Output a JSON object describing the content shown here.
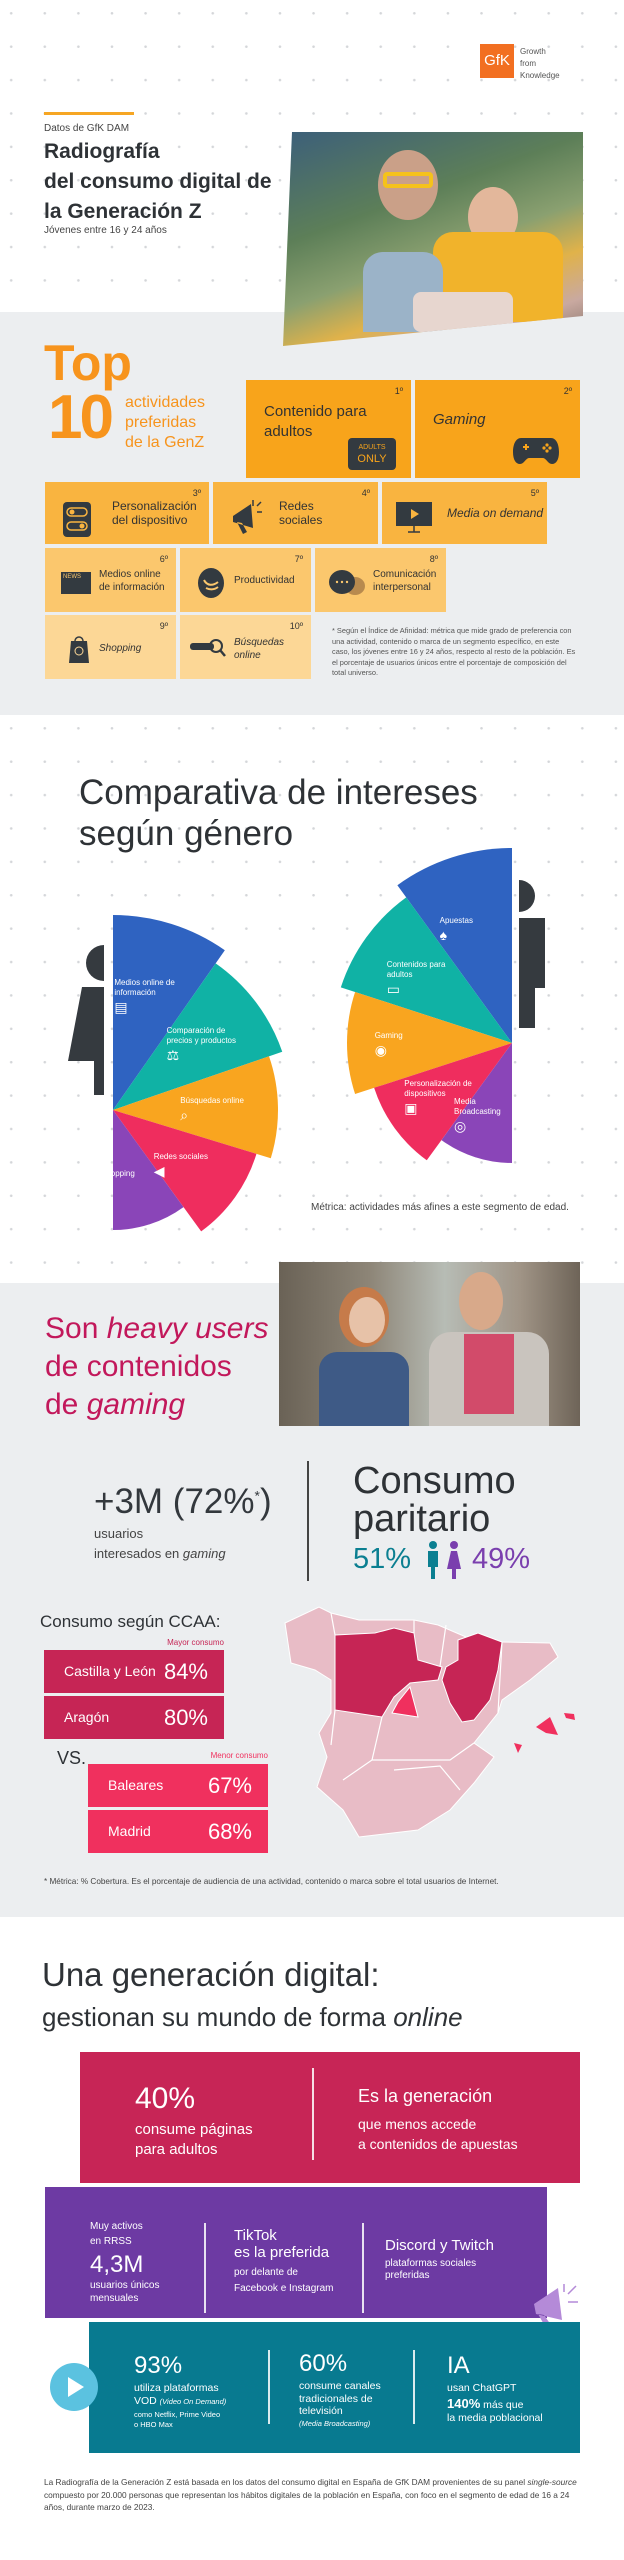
{
  "header": {
    "logo": {
      "brand": "GfK",
      "tagline": [
        "Growth",
        "from",
        "Knowledge"
      ],
      "color": "#f26f21"
    },
    "kicker": "Datos de GfK DAM",
    "title_lines": [
      "Radiografía",
      "del consumo digital de",
      "la Generación Z"
    ],
    "subtitle": "Jóvenes entre 16 y 24 años"
  },
  "top10": {
    "top": "Top",
    "ten": "10",
    "caption_lines": [
      "actividades",
      "preferidas",
      "de la GenZ"
    ],
    "tiles": [
      {
        "rank": "1º",
        "label": "Contenido para adultos",
        "icon": "adults-only-sign-icon",
        "icon_text": [
          "ADULTS",
          "ONLY"
        ]
      },
      {
        "rank": "2º",
        "label": "Gaming",
        "icon": "gamepad-icon"
      },
      {
        "rank": "3º",
        "label": "Personalización del dispositivo",
        "icon": "toggle-switches-icon"
      },
      {
        "rank": "4º",
        "label": "Redes sociales",
        "icon": "megaphone-icon"
      },
      {
        "rank": "5º",
        "label": "Media on demand",
        "icon": "monitor-play-icon"
      },
      {
        "rank": "6º",
        "label": "Medios online de información",
        "icon": "newspaper-icon",
        "icon_text": [
          "NEWS"
        ]
      },
      {
        "rank": "7º",
        "label": "Productividad",
        "icon": "productivity-icon"
      },
      {
        "rank": "8º",
        "label": "Comunicación interpersonal",
        "icon": "chat-bubbles-icon"
      },
      {
        "rank": "9º",
        "label": "Shopping",
        "icon": "shopping-bag-icon"
      },
      {
        "rank": "10º",
        "label": "Búsquedas online",
        "icon": "search-bar-icon"
      }
    ],
    "footnote": "* Según el Índice de Afinidad: métrica que mide grado de preferencia con una actividad, contenido o marca de un segmento específico, en este caso, los jóvenes entre 16 y 24 años, respecto al resto de la población. Es el porcentaje de usuarios únicos entre el porcentaje de composición del total universo.",
    "colors": [
      "#f8a41b",
      "#f9b440",
      "#fbc76d",
      "#fcd796"
    ]
  },
  "gender": {
    "title_lines": [
      "Comparativa de intereses",
      "según género"
    ],
    "female": [
      {
        "label": "Medios online de información",
        "icon": "newspaper-icon",
        "color": "#2f63c1"
      },
      {
        "label": "Comparación de precios y productos",
        "icon": "scale-icon",
        "color": "#10b2a5"
      },
      {
        "label": "Búsquedas online",
        "icon": "search-icon",
        "color": "#f9a51f"
      },
      {
        "label": "Redes sociales",
        "icon": "megaphone-icon",
        "color": "#ef2d5e"
      },
      {
        "label": "Shopping",
        "icon": "shopping-bag-icon",
        "color": "#8a45b8"
      }
    ],
    "male": [
      {
        "label": "Apuestas",
        "icon": "spade-icon",
        "color": "#2f63c1"
      },
      {
        "label": "Contenidos para adultos",
        "icon": "adults-only-sign-icon",
        "color": "#10b2a5"
      },
      {
        "label": "Gaming",
        "icon": "gamepad-icon",
        "color": "#f9a51f"
      },
      {
        "label": "Personalización de dispositivos",
        "icon": "toggle-switches-icon",
        "color": "#ef2d5e"
      },
      {
        "label": "Media Broadcasting",
        "icon": "broadcast-antenna-icon",
        "color": "#8a45b8"
      }
    ],
    "metric_note": "Métrica: actividades más afines a este segmento de edad."
  },
  "gaming": {
    "heading": {
      "l1a": "Son ",
      "l1b": "heavy users",
      "l2": "de contenidos",
      "l3a": "de ",
      "l3b": "gaming"
    },
    "users_stat": "+3M (72%",
    "users_star": "*",
    "users_close": ")",
    "users_desc_1": "usuarios",
    "users_desc_2a": "interesados en ",
    "users_desc_2b": "gaming",
    "parity_title": [
      "Consumo",
      "paritario"
    ],
    "male_pct": "51%",
    "female_pct": "49%",
    "male_color": "#0b7f91",
    "female_color": "#7a3fae",
    "ccaa_title": "Consumo según CCAA:",
    "higher_label": "Mayor consumo",
    "lower_label": "Menor consumo",
    "vs": "VS.",
    "higher": [
      {
        "region": "Castilla y León",
        "value": "84%"
      },
      {
        "region": "Aragón",
        "value": "80%"
      }
    ],
    "lower": [
      {
        "region": "Baleares",
        "value": "67%"
      },
      {
        "region": "Madrid",
        "value": "68%"
      }
    ],
    "footnote": "* Métrica: % Cobertura. Es el porcentaje de audiencia de una actividad, contenido o marca sobre el total usuarios de Internet.",
    "colors": {
      "higher": "#c62555",
      "lower": "#f0305e",
      "map_base": "#e8bcc6"
    }
  },
  "digital": {
    "title": "Una generación digital:",
    "subtitle_a": "gestionan su mundo de forma ",
    "subtitle_b": "online",
    "pink": {
      "pct": "40%",
      "pct_desc": [
        "consume páginas",
        "para adultos"
      ],
      "right_title": "Es la generación",
      "right_desc": [
        "que menos accede",
        "a contenidos de apuestas"
      ],
      "color": "#c72556"
    },
    "purple": {
      "c1_top": [
        "Muy activos",
        "en RRSS"
      ],
      "c1_value": "4,3M",
      "c1_desc": [
        "usuarios únicos",
        "mensuales"
      ],
      "c2_title": [
        "TikTok",
        "es la preferida"
      ],
      "c2_desc": [
        "por delante de",
        "Facebook e Instagram"
      ],
      "c3_title": "Discord y Twitch",
      "c3_desc": [
        "plataformas sociales",
        "preferidas"
      ],
      "color": "#6d3aa3"
    },
    "teal": {
      "c1_value": "93%",
      "c1_desc": "utiliza plataformas",
      "c1_vod": "VOD ",
      "c1_vod_it": "(Video On Demand)",
      "c1_small": [
        "como Netflix, Prime Video",
        "o HBO Max"
      ],
      "c2_value": "60%",
      "c2_desc": [
        "consume canales",
        "tradicionales de",
        "televisión"
      ],
      "c2_small": "(Media Broadcasting)",
      "c3_value": "IA",
      "c3_desc": "usan ChatGPT",
      "c3_pct": "140%",
      "c3_more": " más que",
      "c3_tail": "la media poblacional",
      "color": "#087a90"
    },
    "footer_a": "La Radiografía de la Generación Z está basada en los datos del consumo digital en España de GfK DAM provenientes de su panel ",
    "footer_it": "single-source",
    "footer_b": " compuesto por 20.000 personas que representan los hábitos digitales de la población en España, con foco en el segmento de edad de 16 a 24 años, durante marzo de 2023."
  }
}
